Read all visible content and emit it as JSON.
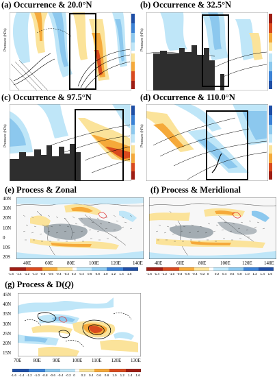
{
  "colors": {
    "blue_dark": "#1f4fa6",
    "blue": "#3b82d6",
    "blue_light": "#8cc8ee",
    "cyan_light": "#bfe6f8",
    "yellow_light": "#fbe39a",
    "orange": "#f5a93a",
    "red": "#d94a1e",
    "red_dark": "#9e1d13",
    "terrain": "#2e2e2e",
    "box": "#000000"
  },
  "panels": {
    "a": {
      "title": "(a) Occurrence & 20.0°N",
      "ylabel": "Pressure (hPa)"
    },
    "b": {
      "title": "(b) Occurrence & 32.5°N",
      "ylabel": "Pressure (hPa)"
    },
    "c": {
      "title": "(c) Occurrence & 97.5°N",
      "ylabel": "Pressure (hPa)"
    },
    "d": {
      "title": "(d) Occurrence & 110.0°N",
      "ylabel": "Pressure (hPa)"
    },
    "e": {
      "title": "(e) Process & Zonal"
    },
    "f": {
      "title": "(f) Process & Meridional"
    },
    "g": {
      "title_prefix": "(g) Process & D(",
      "title_q": "Q",
      "title_suffix": ")"
    }
  },
  "map_ef": {
    "lat_labels": [
      "40N",
      "30N",
      "20N",
      "10N",
      "0",
      "10S",
      "20S"
    ],
    "lon_labels": [
      "40E",
      "60E",
      "80E",
      "100E",
      "120E",
      "140E"
    ]
  },
  "map_g": {
    "lat_labels": [
      "45N",
      "40N",
      "35N",
      "30N",
      "25N",
      "20N",
      "15N"
    ],
    "lon_labels": [
      "70E",
      "80E",
      "90E",
      "100E",
      "110E",
      "120E",
      "130E"
    ]
  },
  "colorbar_ticks": [
    "-1.6",
    "-1.4",
    "-1.2",
    "-1.0",
    "-0.8",
    "-0.6",
    "-0.4",
    "-0.2",
    "0",
    "0.2",
    "0.4",
    "0.6",
    "0.8",
    "1.0",
    "1.2",
    "1.4",
    "1.6"
  ],
  "colorbar_ticks_left": [
    "-1.6",
    "-1.4",
    "-1.2",
    "-1.0",
    "-0.8",
    "-0.6",
    "-0.4",
    "-0.2",
    "0.2",
    "0.4",
    "0.6",
    "0.8",
    "1.0",
    "1.2",
    "1.4",
    "1.6"
  ]
}
